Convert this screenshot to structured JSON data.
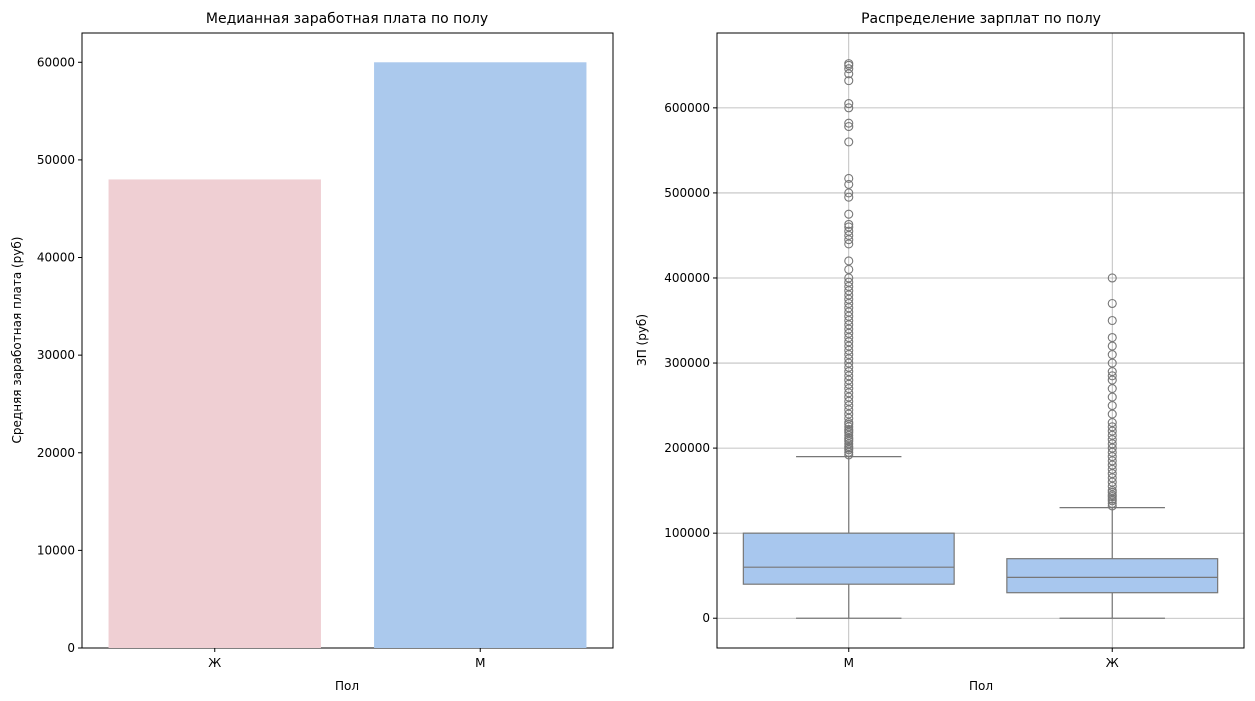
{
  "chart_data": [
    {
      "type": "bar",
      "title": "Медианная заработная плата по полу",
      "xlabel": "Пол",
      "ylabel": "Средняя заработная плата (руб)",
      "categories": [
        "Ж",
        "М"
      ],
      "values": [
        48000,
        60000
      ],
      "colors": [
        "#efcfd3",
        "#abc9ed"
      ],
      "ylim": [
        0,
        63000
      ],
      "yticks": [
        0,
        10000,
        20000,
        30000,
        40000,
        50000,
        60000
      ],
      "grid": false
    },
    {
      "type": "box",
      "title": "Распределение зарплат по полу",
      "xlabel": "Пол",
      "ylabel": "ЗП (руб)",
      "categories": [
        "М",
        "Ж"
      ],
      "box_color": "#a8c7ee",
      "line_color": "#777777",
      "ylim": [
        -35000,
        688000
      ],
      "yticks": [
        0,
        100000,
        200000,
        300000,
        400000,
        500000,
        600000
      ],
      "grid": true,
      "boxes": [
        {
          "category": "М",
          "whisker_low": 0,
          "q1": 40000,
          "median": 60000,
          "q3": 100000,
          "whisker_high": 190000,
          "outliers": [
            192000,
            195000,
            198000,
            200000,
            202000,
            205000,
            208000,
            210000,
            212000,
            215000,
            218000,
            220000,
            222000,
            225000,
            228000,
            230000,
            235000,
            240000,
            245000,
            250000,
            255000,
            260000,
            265000,
            270000,
            275000,
            280000,
            285000,
            290000,
            295000,
            300000,
            305000,
            310000,
            315000,
            320000,
            325000,
            330000,
            335000,
            340000,
            345000,
            350000,
            355000,
            360000,
            365000,
            370000,
            375000,
            380000,
            385000,
            390000,
            395000,
            400000,
            410000,
            420000,
            440000,
            445000,
            450000,
            455000,
            460000,
            463000,
            475000,
            495000,
            500000,
            510000,
            517000,
            560000,
            578000,
            582000,
            600000,
            605000,
            632000,
            640000,
            646000,
            650000,
            652000
          ]
        },
        {
          "category": "Ж",
          "whisker_low": 0,
          "q1": 30000,
          "median": 48000,
          "q3": 70000,
          "whisker_high": 130000,
          "outliers": [
            132000,
            135000,
            138000,
            140000,
            143000,
            145000,
            148000,
            150000,
            155000,
            160000,
            165000,
            170000,
            175000,
            180000,
            185000,
            190000,
            195000,
            200000,
            205000,
            210000,
            215000,
            220000,
            225000,
            230000,
            240000,
            250000,
            260000,
            270000,
            280000,
            285000,
            290000,
            300000,
            310000,
            320000,
            330000,
            350000,
            370000,
            400000
          ]
        }
      ]
    }
  ]
}
